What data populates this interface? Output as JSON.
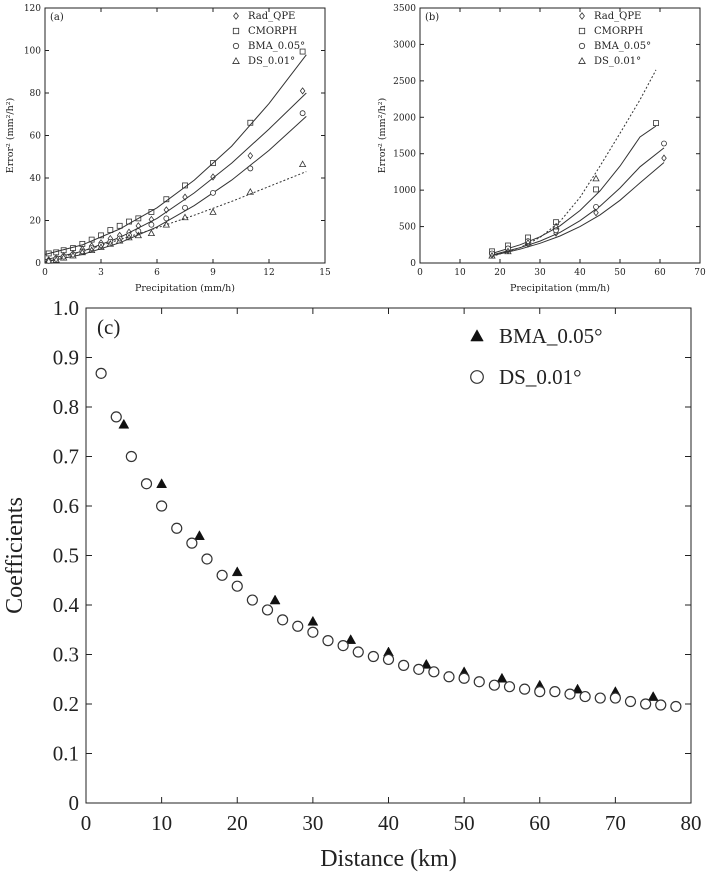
{
  "chart_data": [
    {
      "id": "a",
      "type": "scatter",
      "panel_label": "(a)",
      "xlabel": "Precipitation (mm/h)",
      "ylabel": "Error² (mm²/h²)",
      "xlim": [
        0,
        15
      ],
      "ylim": [
        0,
        120
      ],
      "xticks": [
        "0",
        "3",
        "6",
        "9",
        "12",
        "15"
      ],
      "yticks": [
        "0",
        "20",
        "40",
        "60",
        "80",
        "100",
        "120"
      ],
      "legend_position": "top-right",
      "series": [
        {
          "name": "Rad_QPE",
          "marker": "diamond",
          "line": "solid",
          "x": [
            0.2,
            0.6,
            1.0,
            1.5,
            2.0,
            2.5,
            3.0,
            3.5,
            4.0,
            4.5,
            5.0,
            5.7,
            6.5,
            7.5,
            9.0,
            11.0,
            13.8
          ],
          "y": [
            1.5,
            2.5,
            3.5,
            4.5,
            6.5,
            8.0,
            9.5,
            11.5,
            13.0,
            14.5,
            17.5,
            20.5,
            25.0,
            31.0,
            40.5,
            50.5,
            81.0
          ],
          "fit_x": [
            0,
            2,
            4,
            6,
            8,
            10,
            12,
            14
          ],
          "fit_y": [
            1.5,
            5.5,
            12.0,
            21.0,
            33.0,
            47.0,
            63.0,
            80.0
          ]
        },
        {
          "name": "CMORPH",
          "marker": "square",
          "line": "solid",
          "x": [
            0.2,
            0.6,
            1.0,
            1.5,
            2.0,
            2.5,
            3.0,
            3.5,
            4.0,
            4.5,
            5.0,
            5.7,
            6.5,
            7.5,
            9.0,
            11.0,
            13.8
          ],
          "y": [
            4.5,
            5.0,
            6.0,
            7.0,
            9.0,
            11.0,
            13.0,
            15.5,
            17.5,
            19.5,
            21.0,
            24.0,
            30.0,
            36.5,
            47.0,
            66.0,
            99.5
          ],
          "fit_x": [
            0,
            2,
            4,
            6,
            8,
            10,
            12,
            14
          ],
          "fit_y": [
            4.0,
            8.5,
            16.0,
            26.0,
            39.0,
            55.0,
            75.0,
            98.0
          ]
        },
        {
          "name": "BMA_0.05°",
          "marker": "circle",
          "line": "solid",
          "x": [
            0.2,
            0.6,
            1.0,
            1.5,
            2.0,
            2.5,
            3.0,
            3.5,
            4.0,
            4.5,
            5.0,
            5.7,
            6.5,
            7.5,
            9.0,
            11.0,
            13.8
          ],
          "y": [
            1.0,
            2.0,
            3.0,
            4.0,
            5.5,
            7.0,
            8.5,
            10.0,
            11.5,
            13.0,
            15.0,
            18.0,
            21.0,
            26.0,
            33.0,
            44.5,
            70.5
          ],
          "fit_x": [
            0,
            2,
            4,
            6,
            8,
            10,
            12,
            14
          ],
          "fit_y": [
            0.5,
            4.0,
            9.5,
            17.0,
            27.0,
            39.0,
            53.0,
            69.0
          ]
        },
        {
          "name": "DS_0.01°",
          "marker": "triangle",
          "line": "dotted",
          "x": [
            0.2,
            0.6,
            1.0,
            1.5,
            2.0,
            2.5,
            3.0,
            3.5,
            4.0,
            4.5,
            5.0,
            5.7,
            6.5,
            7.5,
            9.0,
            11.0,
            13.8
          ],
          "y": [
            1.0,
            1.5,
            2.5,
            3.5,
            5.0,
            6.0,
            7.5,
            9.0,
            10.5,
            12.0,
            13.0,
            14.0,
            18.0,
            21.5,
            24.0,
            33.5,
            46.5
          ],
          "fit_x": [
            0,
            2,
            4,
            6,
            8,
            10,
            12,
            14
          ],
          "fit_y": [
            0.5,
            5.5,
            11.0,
            16.5,
            22.5,
            29.0,
            36.0,
            43.0
          ]
        }
      ]
    },
    {
      "id": "b",
      "type": "scatter",
      "panel_label": "(b)",
      "xlabel": "Precipitation (mm/h)",
      "ylabel": "Error² (mm²/h²)",
      "xlim": [
        0,
        70
      ],
      "ylim": [
        0,
        3500
      ],
      "xticks": [
        "0",
        "10",
        "20",
        "30",
        "40",
        "50",
        "60",
        "70"
      ],
      "yticks": [
        "0",
        "500",
        "1000",
        "1500",
        "2000",
        "2500",
        "3000",
        "3500"
      ],
      "legend_position": "top-right",
      "series": [
        {
          "name": "Rad_QPE",
          "marker": "diamond",
          "line": "solid",
          "x": [
            18,
            22,
            27,
            34,
            44,
            61
          ],
          "y": [
            110,
            170,
            260,
            410,
            690,
            1440
          ],
          "fit_x": [
            18,
            25,
            30,
            35,
            40,
            45,
            50,
            55,
            61
          ],
          "fit_y": [
            100,
            190,
            270,
            370,
            500,
            660,
            860,
            1100,
            1380
          ]
        },
        {
          "name": "CMORPH",
          "marker": "square",
          "line": "solid",
          "x": [
            18,
            22,
            27,
            34,
            44,
            59
          ],
          "y": [
            160,
            240,
            350,
            560,
            1010,
            1920
          ],
          "fit_x": [
            18,
            25,
            30,
            35,
            40,
            45,
            50,
            55,
            59
          ],
          "fit_y": [
            130,
            250,
            360,
            510,
            720,
            990,
            1330,
            1730,
            1880
          ]
        },
        {
          "name": "BMA_0.05°",
          "marker": "circle",
          "line": "solid",
          "x": [
            18,
            22,
            27,
            34,
            44,
            61
          ],
          "y": [
            130,
            200,
            300,
            450,
            770,
            1640
          ],
          "fit_x": [
            18,
            25,
            30,
            35,
            40,
            45,
            50,
            55,
            61
          ],
          "fit_y": [
            110,
            210,
            300,
            420,
            580,
            780,
            1030,
            1320,
            1580
          ]
        },
        {
          "name": "DS_0.01°",
          "marker": "triangle",
          "line": "dotted",
          "x": [
            18,
            22,
            27,
            34,
            44
          ],
          "y": [
            100,
            160,
            280,
            500,
            1160
          ],
          "fit_x": [
            18,
            25,
            30,
            35,
            40,
            45,
            50,
            55,
            59
          ],
          "fit_y": [
            90,
            210,
            350,
            570,
            900,
            1330,
            1780,
            2240,
            2650
          ]
        }
      ]
    },
    {
      "id": "c",
      "type": "scatter",
      "panel_label": "(c)",
      "xlabel": "Distance (km)",
      "ylabel": "Coefficients",
      "xlim": [
        0,
        80
      ],
      "ylim": [
        0,
        1.0
      ],
      "xticks": [
        "0",
        "10",
        "20",
        "30",
        "40",
        "50",
        "60",
        "70",
        "80"
      ],
      "yticks": [
        "0",
        "0.1",
        "0.2",
        "0.3",
        "0.4",
        "0.5",
        "0.6",
        "0.7",
        "0.8",
        "0.9",
        "1.0"
      ],
      "legend_position": "top-right",
      "series": [
        {
          "name": "BMA_0.05°",
          "marker": "filled-triangle",
          "x": [
            5,
            10,
            15,
            20,
            25,
            30,
            35,
            40,
            45,
            50,
            55,
            60,
            65,
            70,
            75
          ],
          "y": [
            0.765,
            0.645,
            0.54,
            0.467,
            0.41,
            0.367,
            0.33,
            0.305,
            0.28,
            0.265,
            0.252,
            0.238,
            0.23,
            0.225,
            0.215
          ]
        },
        {
          "name": "DS_0.01°",
          "marker": "open-circle",
          "x": [
            2,
            4,
            6,
            8,
            10,
            12,
            14,
            16,
            18,
            20,
            22,
            24,
            26,
            28,
            30,
            32,
            34,
            36,
            38,
            40,
            42,
            44,
            46,
            48,
            50,
            52,
            54,
            56,
            58,
            60,
            62,
            64,
            66,
            68,
            70,
            72,
            74,
            76,
            78
          ],
          "y": [
            0.868,
            0.78,
            0.7,
            0.645,
            0.6,
            0.555,
            0.525,
            0.493,
            0.46,
            0.438,
            0.41,
            0.39,
            0.37,
            0.357,
            0.345,
            0.328,
            0.318,
            0.305,
            0.296,
            0.29,
            0.278,
            0.27,
            0.265,
            0.255,
            0.252,
            0.245,
            0.238,
            0.235,
            0.23,
            0.225,
            0.225,
            0.22,
            0.215,
            0.212,
            0.212,
            0.205,
            0.2,
            0.198,
            0.195
          ]
        }
      ]
    }
  ]
}
